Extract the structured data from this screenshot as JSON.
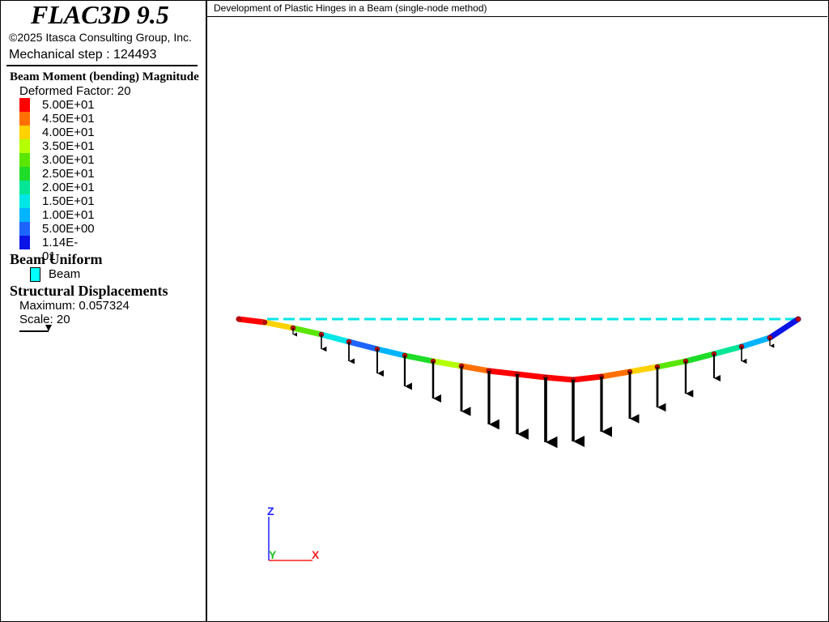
{
  "header": {
    "title": "FLAC3D 9.5",
    "copyright": "©2025 Itasca Consulting Group, Inc.",
    "step": "Mechanical step : 124493"
  },
  "legend": {
    "title": "Beam Moment (bending) Magnitude",
    "factor": "Deformed Factor: 20",
    "levels": [
      {
        "label": "5.00E+01",
        "color": "#ff0000"
      },
      {
        "label": "4.50E+01",
        "color": "#ff7000"
      },
      {
        "label": "4.00E+01",
        "color": "#ffd200"
      },
      {
        "label": "3.50E+01",
        "color": "#b4ff00"
      },
      {
        "label": "3.00E+01",
        "color": "#5ae600"
      },
      {
        "label": "2.50E+01",
        "color": "#1edc28"
      },
      {
        "label": "2.00E+01",
        "color": "#00e696"
      },
      {
        "label": "1.50E+01",
        "color": "#00e6e6"
      },
      {
        "label": "1.00E+01",
        "color": "#00b4ff"
      },
      {
        "label": "5.00E+00",
        "color": "#1e64ff"
      },
      {
        "label": "1.14E-01",
        "color": "#0a14e6"
      }
    ]
  },
  "beam_uniform": {
    "title": "Beam Uniform",
    "item": "Beam"
  },
  "displacements": {
    "title": "Structural Displacements",
    "maximum": "Maximum: 0.057324",
    "scale": "Scale: 20"
  },
  "plot": {
    "title": "Development of Plastic Hinges in a Beam (single-node method)",
    "axes": {
      "z": "Z",
      "y": "Y",
      "x": "X"
    }
  }
}
